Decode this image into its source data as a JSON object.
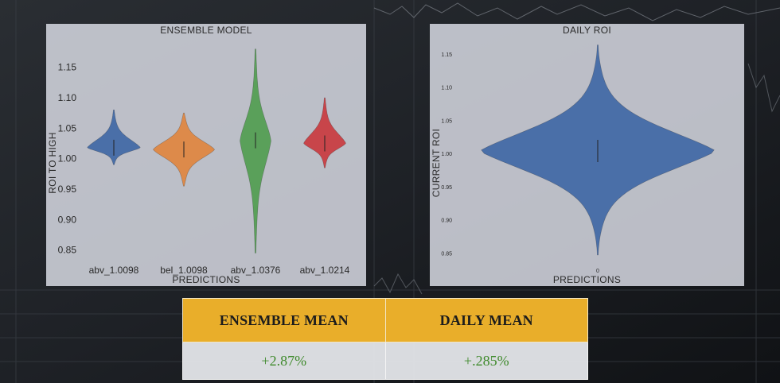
{
  "chart_data": [
    {
      "type": "violin",
      "title": "ENSEMBLE MODEL",
      "xlabel": "PREDICTIONS",
      "ylabel": "ROI TO HIGH",
      "categories": [
        "abv_1.0098",
        "bel_1.0098",
        "abv_1.0376",
        "abv_1.0214"
      ],
      "ylim": [
        0.83,
        1.19
      ],
      "yticks": [
        "0.85",
        "0.90",
        "0.95",
        "1.00",
        "1.05",
        "1.10",
        "1.15"
      ],
      "series": [
        {
          "category": "abv_1.0098",
          "color": "#4a6fa8",
          "min": 0.99,
          "max": 1.08,
          "median": 1.018
        },
        {
          "category": "bel_1.0098",
          "color": "#dd8a4a",
          "min": 0.955,
          "max": 1.075,
          "median": 1.015
        },
        {
          "category": "abv_1.0376",
          "color": "#5aa05a",
          "min": 0.845,
          "max": 1.18,
          "median": 1.03
        },
        {
          "category": "abv_1.0214",
          "color": "#c8454a",
          "min": 0.985,
          "max": 1.1,
          "median": 1.025
        }
      ]
    },
    {
      "type": "violin",
      "title": "DAILY ROI",
      "xlabel": "PREDICTIONS",
      "ylabel": "CURRENT ROI",
      "categories": [
        "0"
      ],
      "ylim": [
        0.83,
        1.18
      ],
      "yticks": [
        "0.85",
        "0.90",
        "0.95",
        "1.00",
        "1.05",
        "1.10",
        "1.15"
      ],
      "series": [
        {
          "category": "0",
          "color": "#4a6fa8",
          "min": 0.848,
          "max": 1.165,
          "median": 1.005
        }
      ]
    }
  ],
  "summary": {
    "headers": [
      "ENSEMBLE MEAN",
      "DAILY MEAN"
    ],
    "values": [
      "+2.87%",
      "+.285%"
    ]
  }
}
